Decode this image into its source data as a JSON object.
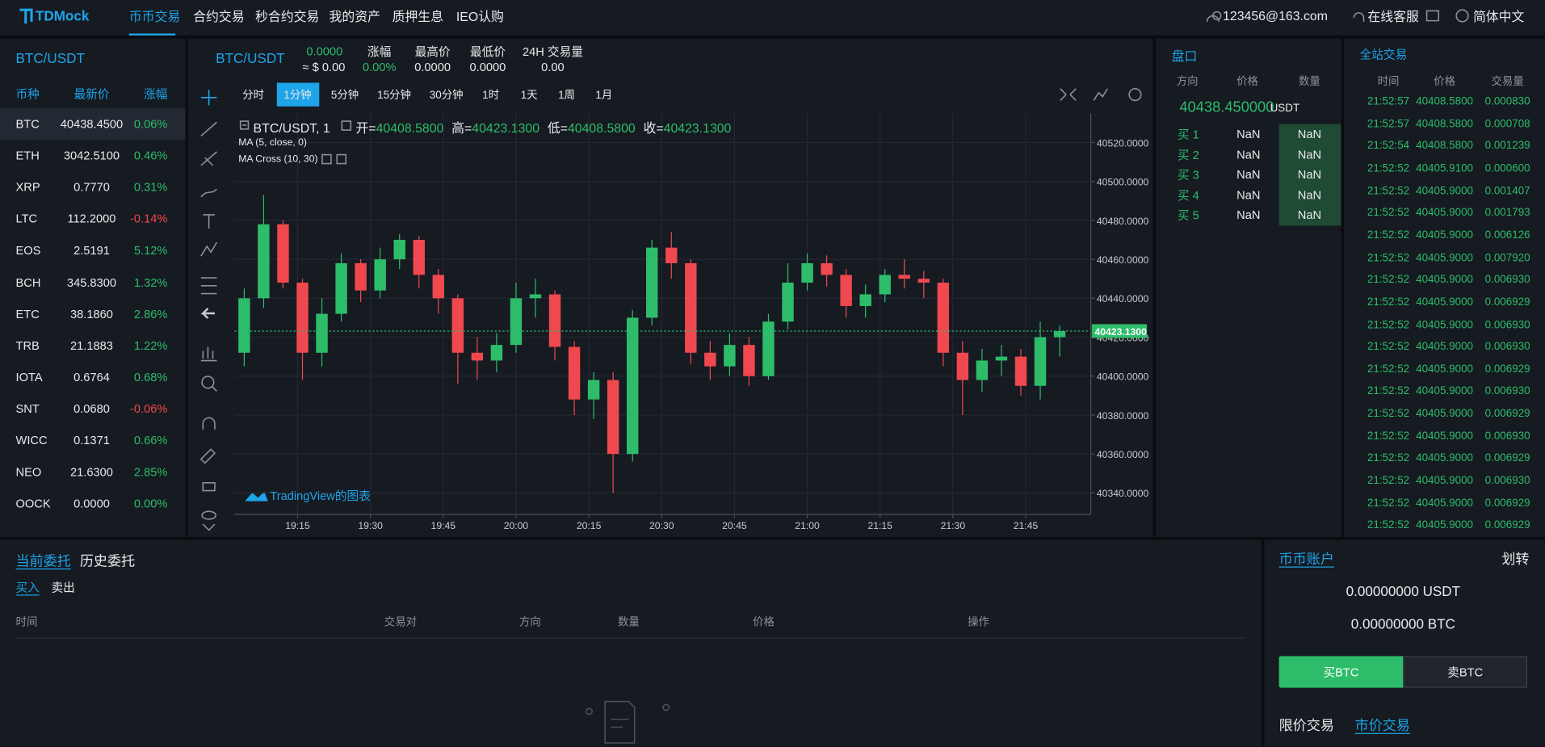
{
  "header": {
    "logo": "TDMock",
    "nav": [
      "币币交易",
      "合约交易",
      "秒合约交易",
      "我的资产",
      "质押生息",
      "IEO认购"
    ],
    "user": "123456@163.com",
    "service": "在线客服",
    "language": "简体中文"
  },
  "market_list": {
    "title": "BTC/USDT",
    "columns": [
      "币种",
      "最新价",
      "涨幅"
    ],
    "rows": [
      [
        "BTC",
        "40438.4500",
        "0.06%"
      ],
      [
        "ETH",
        "3042.5100",
        "0.46%"
      ],
      [
        "XRP",
        "0.7770",
        "0.31%"
      ],
      [
        "LTC",
        "112.2000",
        "-0.14%"
      ],
      [
        "EOS",
        "2.5191",
        "5.12%"
      ],
      [
        "BCH",
        "345.8300",
        "1.32%"
      ],
      [
        "ETC",
        "38.1860",
        "2.86%"
      ],
      [
        "TRB",
        "21.1883",
        "1.22%"
      ],
      [
        "IOTA",
        "0.6764",
        "0.68%"
      ],
      [
        "SNT",
        "0.0680",
        "-0.06%"
      ],
      [
        "WICC",
        "0.1371",
        "0.66%"
      ],
      [
        "NEO",
        "21.6300",
        "2.85%"
      ],
      [
        "OOCK",
        "0.0000",
        "0.00%"
      ]
    ]
  },
  "ticker": {
    "pair": "BTC/USDT",
    "price": "0.0000",
    "price_usd": "≈ $ 0.00",
    "stats": [
      {
        "label": "涨幅",
        "value": "0.00%"
      },
      {
        "label": "最高价",
        "value": "0.0000"
      },
      {
        "label": "最低价",
        "value": "0.0000"
      },
      {
        "label": "24H 交易量",
        "value": "0.00"
      }
    ]
  },
  "chart": {
    "intervals": [
      "分时",
      "1分钟",
      "5分钟",
      "15分钟",
      "30分钟",
      "1时",
      "1天",
      "1周",
      "1月"
    ],
    "legend": {
      "symbol": "BTC/USDT, 1",
      "items": [
        {
          "label": "开=",
          "value": "40408.5800"
        },
        {
          "label": "高=",
          "value": "40423.1300"
        },
        {
          "label": "低=",
          "value": "40408.5800"
        },
        {
          "label": "收=",
          "value": "40423.1300"
        }
      ]
    },
    "indicators": [
      "MA (5, close, 0)",
      "MA Cross (10, 30)"
    ],
    "watermark": "TradingView的图表",
    "up_color": "#2dbd6a",
    "down_color": "#f0484f",
    "ylim": [
      40329,
      40535
    ],
    "yticks": [
      {
        "value": 40340,
        "label": "40340.0000"
      },
      {
        "value": 40360,
        "label": "40360.0000"
      },
      {
        "value": 40380,
        "label": "40380.0000"
      },
      {
        "value": 40400,
        "label": "40400.0000"
      },
      {
        "value": 40420,
        "label": "40420.0000"
      },
      {
        "value": 40440,
        "label": "40440.0000"
      },
      {
        "value": 40460,
        "label": "40460.0000"
      },
      {
        "value": 40480,
        "label": "40480.0000"
      },
      {
        "value": 40500,
        "label": "40500.0000"
      },
      {
        "value": 40520,
        "label": "40520.0000"
      }
    ],
    "xlim": [
      2,
      178
    ],
    "xticks": [
      {
        "value": 15,
        "label": "19:15"
      },
      {
        "value": 30,
        "label": "19:30"
      },
      {
        "value": 45,
        "label": "19:45"
      },
      {
        "value": 60,
        "label": "20:00"
      },
      {
        "value": 75,
        "label": "20:15"
      },
      {
        "value": 90,
        "label": "20:30"
      },
      {
        "value": 105,
        "label": "20:45"
      },
      {
        "value": 120,
        "label": "21:00"
      },
      {
        "value": 135,
        "label": "21:15"
      },
      {
        "value": 150,
        "label": "21:30"
      },
      {
        "value": 165,
        "label": "21:45"
      }
    ],
    "last_price": {
      "value": 40423.13,
      "label": "40423.1300"
    },
    "candles": {
      "x": [
        4,
        8,
        12,
        16,
        20,
        24,
        28,
        32,
        36,
        40,
        44,
        48,
        52,
        56,
        60,
        64,
        68,
        72,
        76,
        80,
        84,
        88,
        92,
        96,
        100,
        104,
        108,
        112,
        116,
        120,
        124,
        128,
        132,
        136,
        140,
        144,
        148,
        152,
        156,
        160,
        164,
        168,
        172
      ],
      "open": [
        40412,
        40440,
        40478,
        40448,
        40412,
        40432,
        40458,
        40444,
        40460,
        40470,
        40452,
        40440,
        40412,
        40408,
        40416,
        40440,
        40442,
        40415,
        40388,
        40398,
        40360,
        40430,
        40466,
        40458,
        40412,
        40405,
        40416,
        40400,
        40428,
        40448,
        40458,
        40452,
        40436,
        40442,
        40452,
        40450,
        40448,
        40412,
        40398,
        40408,
        40410,
        40395,
        40420
      ],
      "high": [
        40445,
        40493,
        40480,
        40450,
        40440,
        40463,
        40460,
        40466,
        40473,
        40472,
        40455,
        40442,
        40420,
        40422,
        40448,
        40450,
        40444,
        40418,
        40402,
        40402,
        40434,
        40470,
        40474,
        40460,
        40418,
        40422,
        40420,
        40432,
        40458,
        40463,
        40462,
        40455,
        40447,
        40455,
        40460,
        40454,
        40450,
        40418,
        40414,
        40416,
        40414,
        40428,
        40426
      ],
      "low": [
        40405,
        40435,
        40445,
        40398,
        40405,
        40428,
        40438,
        40440,
        40455,
        40445,
        40432,
        40396,
        40398,
        40402,
        40412,
        40430,
        40408,
        40380,
        40378,
        40340,
        40356,
        40426,
        40450,
        40406,
        40398,
        40400,
        40395,
        40398,
        40424,
        40444,
        40446,
        40430,
        40430,
        40438,
        40445,
        40440,
        40405,
        40380,
        40392,
        40400,
        40390,
        40388,
        40410
      ],
      "close": [
        40440,
        40478,
        40448,
        40412,
        40432,
        40458,
        40444,
        40460,
        40470,
        40452,
        40440,
        40412,
        40408,
        40416,
        40440,
        40442,
        40415,
        40388,
        40398,
        40360,
        40430,
        40466,
        40458,
        40412,
        40405,
        40416,
        40400,
        40428,
        40448,
        40458,
        40452,
        40436,
        40442,
        40452,
        40450,
        40448,
        40412,
        40398,
        40408,
        40410,
        40395,
        40420,
        40423.13
      ]
    }
  },
  "order_book": {
    "title": "盘口",
    "columns": [
      "方向",
      "价格",
      "数量"
    ],
    "price": "40438.450000",
    "unit": "USDT",
    "rows": [
      [
        "买 1",
        "NaN",
        "NaN"
      ],
      [
        "买 2",
        "NaN",
        "NaN"
      ],
      [
        "买 3",
        "NaN",
        "NaN"
      ],
      [
        "买 4",
        "NaN",
        "NaN"
      ],
      [
        "买 5",
        "NaN",
        "NaN"
      ]
    ]
  },
  "trades": {
    "title": "全站交易",
    "columns": [
      "时间",
      "价格",
      "交易量"
    ],
    "rows": [
      [
        "21:52:57",
        "40408.5800",
        "0.000830"
      ],
      [
        "21:52:57",
        "40408.5800",
        "0.000708"
      ],
      [
        "21:52:54",
        "40408.5800",
        "0.001239"
      ],
      [
        "21:52:52",
        "40405.9100",
        "0.000600"
      ],
      [
        "21:52:52",
        "40405.9000",
        "0.001407"
      ],
      [
        "21:52:52",
        "40405.9000",
        "0.001793"
      ],
      [
        "21:52:52",
        "40405.9000",
        "0.006126"
      ],
      [
        "21:52:52",
        "40405.9000",
        "0.007920"
      ],
      [
        "21:52:52",
        "40405.9000",
        "0.006930"
      ],
      [
        "21:52:52",
        "40405.9000",
        "0.006929"
      ],
      [
        "21:52:52",
        "40405.9000",
        "0.006930"
      ],
      [
        "21:52:52",
        "40405.9000",
        "0.006930"
      ],
      [
        "21:52:52",
        "40405.9000",
        "0.006929"
      ],
      [
        "21:52:52",
        "40405.9000",
        "0.006930"
      ],
      [
        "21:52:52",
        "40405.9000",
        "0.006929"
      ],
      [
        "21:52:52",
        "40405.9000",
        "0.006930"
      ],
      [
        "21:52:52",
        "40405.9000",
        "0.006929"
      ],
      [
        "21:52:52",
        "40405.9000",
        "0.006930"
      ],
      [
        "21:52:52",
        "40405.9000",
        "0.006929"
      ],
      [
        "21:52:52",
        "40405.9000",
        "0.006929"
      ]
    ]
  },
  "orders": {
    "tabs": [
      "当前委托",
      "历史委托"
    ],
    "sides": [
      "买入",
      "卖出"
    ],
    "columns": [
      "时间",
      "交易对",
      "方向",
      "数量",
      "价格",
      "操作"
    ]
  },
  "account": {
    "title": "币币账户",
    "transfer": "划转",
    "balances": [
      "0.00000000 USDT",
      "0.00000000 BTC"
    ],
    "buttons": [
      "买BTC",
      "卖BTC"
    ],
    "modes": [
      "限价交易",
      "市价交易"
    ]
  }
}
